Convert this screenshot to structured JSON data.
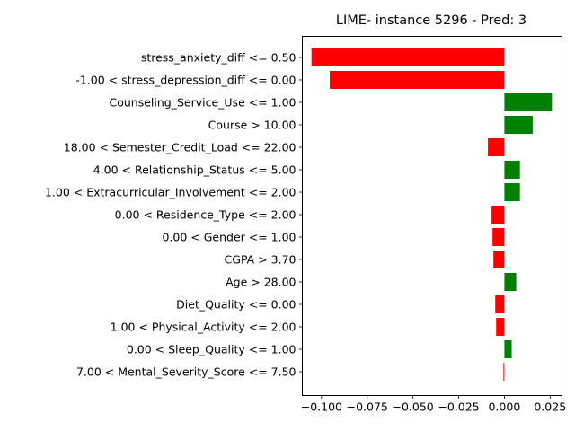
{
  "chart_data": {
    "type": "bar",
    "orientation": "horizontal",
    "title": "LIME- instance 5296 - Pred: 3",
    "xlabel": "",
    "ylabel": "",
    "xlim": [
      -0.1105,
      0.0315
    ],
    "xticks": [
      -0.1,
      -0.075,
      -0.05,
      -0.025,
      0.0,
      0.025
    ],
    "xtick_labels": [
      "−0.100",
      "−0.075",
      "−0.050",
      "−0.025",
      "0.000",
      "0.025"
    ],
    "grid": false,
    "legend": "none",
    "colors": {
      "positive": "#008000",
      "negative": "#ff0000"
    },
    "categories": [
      "stress_anxiety_diff <= 0.50",
      "-1.00 < stress_depression_diff <= 0.00",
      "Counseling_Service_Use <= 1.00",
      "Course > 10.00",
      "18.00 < Semester_Credit_Load <= 22.00",
      "4.00 < Relationship_Status <= 5.00",
      "1.00 < Extracurricular_Involvement <= 2.00",
      "0.00 < Residence_Type <= 2.00",
      "0.00 < Gender <= 1.00",
      "CGPA > 3.70",
      "Age > 28.00",
      "Diet_Quality <= 0.00",
      "1.00 < Physical_Activity <= 2.00",
      "0.00 < Sleep_Quality <= 1.00",
      "7.00 < Mental_Severity_Score <= 7.50"
    ],
    "values": [
      -0.1055,
      -0.0955,
      0.026,
      0.0155,
      -0.009,
      0.0085,
      0.0085,
      -0.007,
      -0.0065,
      -0.006,
      0.0065,
      -0.005,
      -0.0045,
      0.004,
      -0.0005
    ]
  }
}
